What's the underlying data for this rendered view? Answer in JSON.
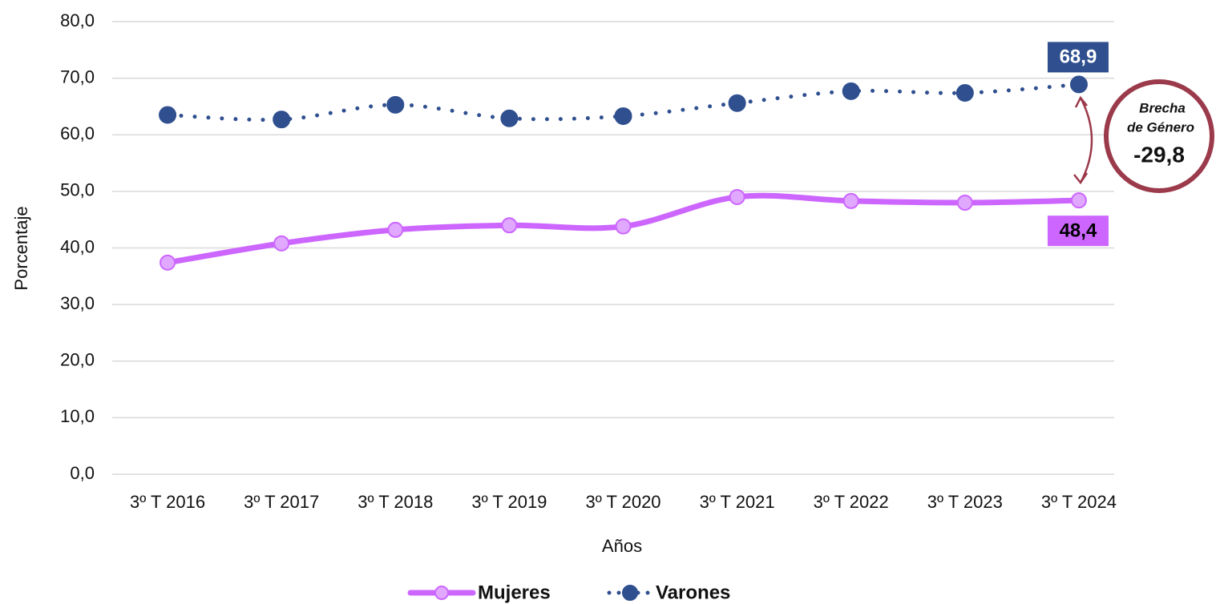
{
  "chart_data": {
    "type": "line",
    "categories": [
      "3º T 2016",
      "3º T 2017",
      "3º T 2018",
      "3º T 2019",
      "3º T 2020",
      "3º T 2021",
      "3º T 2022",
      "3º T 2023",
      "3º T 2024"
    ],
    "series": [
      {
        "name": "Mujeres",
        "color": "#cc66ff",
        "style": "solid",
        "values": [
          37.4,
          40.8,
          43.2,
          44.0,
          43.8,
          49.0,
          48.3,
          48.0,
          48.4
        ],
        "value_labels": [
          null,
          null,
          null,
          null,
          null,
          null,
          null,
          null,
          "48,4"
        ]
      },
      {
        "name": "Varones",
        "color": "#2f4f8f",
        "style": "dotted",
        "values": [
          63.5,
          62.7,
          65.3,
          62.9,
          63.3,
          65.6,
          67.7,
          67.4,
          68.9
        ],
        "value_labels": [
          null,
          null,
          null,
          null,
          null,
          null,
          null,
          null,
          "68,9"
        ]
      }
    ],
    "xlabel": "Años",
    "ylabel": "Porcentaje",
    "ylim": [
      0,
      80
    ],
    "yticks": [
      {
        "value": 0,
        "label": "0,0"
      },
      {
        "value": 10,
        "label": "10,0"
      },
      {
        "value": 20,
        "label": "20,0"
      },
      {
        "value": 30,
        "label": "30,0"
      },
      {
        "value": 40,
        "label": "40,0"
      },
      {
        "value": 50,
        "label": "50,0"
      },
      {
        "value": 60,
        "label": "60,0"
      },
      {
        "value": 70,
        "label": "70,0"
      },
      {
        "value": 80,
        "label": "80,0"
      }
    ],
    "grid": true,
    "legend": "bottom",
    "annotation": {
      "text": [
        "Brecha",
        "de Género",
        "-29,8"
      ],
      "color": "#9b3a4a"
    }
  }
}
